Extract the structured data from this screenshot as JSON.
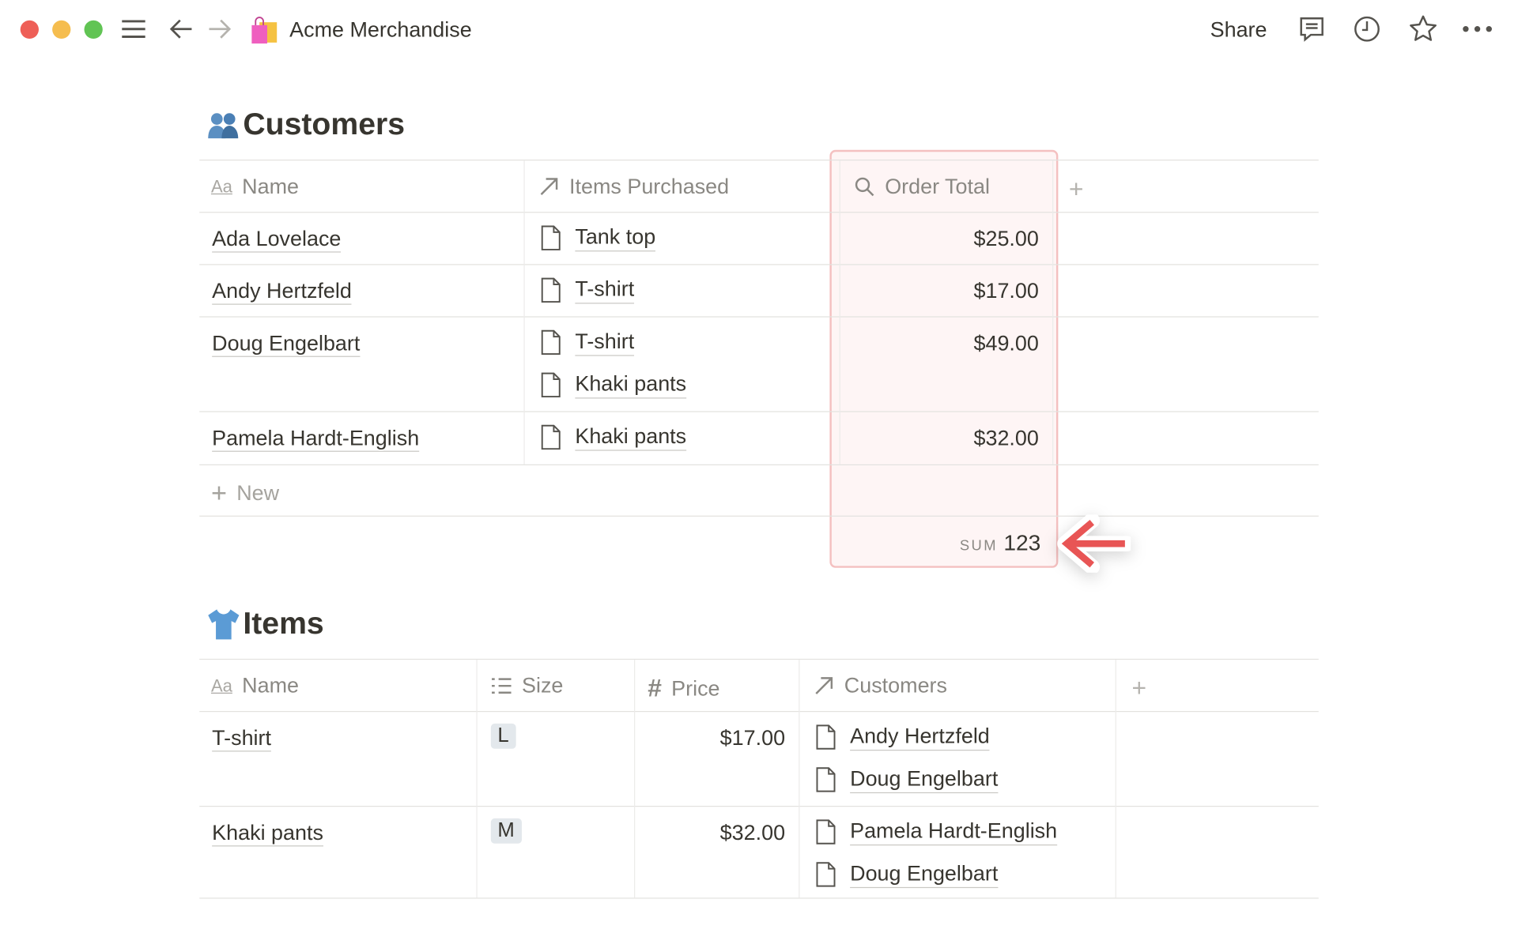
{
  "window": {
    "title": "Acme Merchandise",
    "page_icon": "shopping-bags-icon",
    "traffic_lights": {
      "close": "#ee5f57",
      "minimize": "#f5bd4f",
      "maximize": "#61c454"
    }
  },
  "topbar": {
    "share_label": "Share",
    "icons": [
      "comment-icon",
      "history-icon",
      "star-icon",
      "more-icon"
    ]
  },
  "customers": {
    "title": "Customers",
    "icon": "people-icon",
    "columns": [
      {
        "label": "Name",
        "icon": "text-icon"
      },
      {
        "label": "Items Purchased",
        "icon": "relation-arrow-icon"
      },
      {
        "label": "Order Total",
        "icon": "search-icon"
      }
    ],
    "rows": [
      {
        "name": "Ada Lovelace",
        "items": [
          "Tank top"
        ],
        "total": "$25.00"
      },
      {
        "name": "Andy Hertzfeld",
        "items": [
          "T-shirt"
        ],
        "total": "$17.00"
      },
      {
        "name": "Doug Engelbart",
        "items": [
          "T-shirt",
          "Khaki pants"
        ],
        "total": "$49.00"
      },
      {
        "name": "Pamela Hardt-English",
        "items": [
          "Khaki pants"
        ],
        "total": "$32.00"
      }
    ],
    "new_label": "New",
    "sum_label": "SUM",
    "sum_value": "123",
    "highlight_color": "#eb5757"
  },
  "items": {
    "title": "Items",
    "icon": "shirt-icon",
    "columns": [
      {
        "label": "Name",
        "icon": "text-icon"
      },
      {
        "label": "Size",
        "icon": "list-icon"
      },
      {
        "label": "Price",
        "icon": "number-icon"
      },
      {
        "label": "Customers",
        "icon": "relation-arrow-icon"
      }
    ],
    "rows": [
      {
        "name": "T-shirt",
        "size": "L",
        "price": "$17.00",
        "customers": [
          "Andy Hertzfeld",
          "Doug Engelbart"
        ]
      },
      {
        "name": "Khaki pants",
        "size": "M",
        "price": "$32.00",
        "customers": [
          "Pamela Hardt-English",
          "Doug Engelbart"
        ]
      }
    ]
  }
}
